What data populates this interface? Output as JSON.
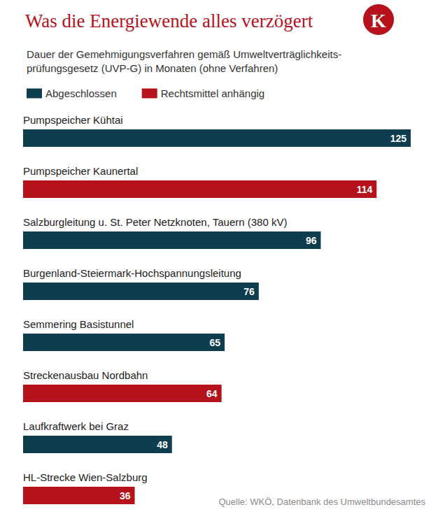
{
  "chart_data": {
    "type": "bar",
    "orientation": "horizontal",
    "title": "Was die Energiewende alles verzögert",
    "subtitle": "Dauer der Gemehmigungsverfahren gemäß Umweltverträglichkeits-\nprüfungsgesetz (UVP-G) in Monaten (ohne Verfahren)",
    "logo": "K",
    "source": "Quelle: WKÖ, Datenbank des Umweltbundesamtes",
    "categories": [
      "Pumpspeicher Kühtai",
      "Pumpspeicher Kaunertal",
      "Salzburgleitung u. St. Peter Netzknoten, Tauern (380 kV)",
      "Burgenland-Steiermark-Hochspannungsleitung",
      "Semmering Basistunnel",
      "Streckenausbau Nordbahn",
      "Laufkraftwerk bei Graz",
      "HL-Strecke Wien-Salzburg"
    ],
    "series": [
      {
        "name": "Abgeschlossen",
        "color": "#0e3d4f",
        "values": [
          125,
          null,
          96,
          76,
          65,
          null,
          48,
          null
        ]
      },
      {
        "name": "Rechtsmittel anhängig",
        "color": "#b5121b",
        "values": [
          null,
          114,
          null,
          null,
          null,
          64,
          null,
          36
        ]
      }
    ],
    "xlim": [
      0,
      125
    ],
    "data_labels": true,
    "tick_labels": "y",
    "grid": false,
    "legend": "top-left"
  }
}
